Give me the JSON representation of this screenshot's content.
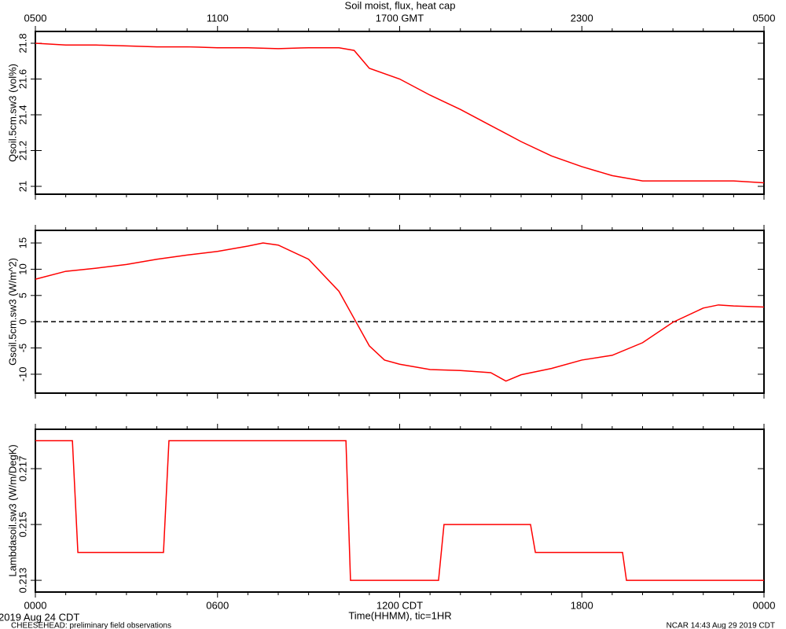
{
  "chart_data": [
    {
      "type": "line",
      "title": "Soil moist, flux, heat cap",
      "ylabel": "Qsoil.5cm.sw3 (vol%)",
      "xlim": [
        0,
        24
      ],
      "ylim": [
        20.956,
        21.866
      ],
      "yticks": [
        21.0,
        21.2,
        21.4,
        21.6,
        21.8
      ],
      "x2ticks": [
        {
          "value": 0,
          "label": "0500"
        },
        {
          "value": 6,
          "label": "1100"
        },
        {
          "value": 12,
          "label": "1700 GMT"
        },
        {
          "value": 18,
          "label": "2300"
        },
        {
          "value": 24,
          "label": "0500"
        }
      ],
      "xminorticks": [
        1,
        2,
        3,
        4,
        5,
        7,
        8,
        9,
        10,
        11,
        13,
        14,
        15,
        16,
        17,
        19,
        20,
        21,
        22,
        23
      ],
      "x": [
        0,
        1,
        2,
        3,
        4,
        5,
        6,
        7,
        8,
        9,
        10,
        10.5,
        11,
        12,
        13,
        14,
        15,
        16,
        17,
        18,
        19,
        20,
        21,
        22,
        23,
        24
      ],
      "series": [
        {
          "color": "#ff0000",
          "values": [
            21.8,
            21.79,
            21.79,
            21.785,
            21.78,
            21.78,
            21.775,
            21.775,
            21.77,
            21.775,
            21.775,
            21.76,
            21.66,
            21.6,
            21.51,
            21.43,
            21.34,
            21.25,
            21.17,
            21.11,
            21.06,
            21.03,
            21.03,
            21.03,
            21.03,
            21.02
          ]
        }
      ]
    },
    {
      "type": "line",
      "ylabel": "Gsoil.5cm.sw3 (W/m^2)",
      "xlim": [
        0,
        24
      ],
      "ylim": [
        -13.6,
        17.4
      ],
      "yticks": [
        -10,
        -5,
        0,
        5,
        10,
        15
      ],
      "reference_line": 0,
      "x": [
        0,
        1,
        2,
        3,
        4,
        5,
        6,
        7,
        7.5,
        8,
        9,
        10,
        10.5,
        11,
        11.5,
        12,
        13,
        14,
        15,
        15.5,
        16,
        17,
        18,
        19,
        20,
        21,
        22,
        22.5,
        23,
        24
      ],
      "series": [
        {
          "color": "#ff0000",
          "values": [
            8.1,
            9.6,
            10.2,
            10.9,
            11.9,
            12.7,
            13.4,
            14.4,
            15,
            14.6,
            11.9,
            5.8,
            0.6,
            -4.6,
            -7.3,
            -8.1,
            -9.1,
            -9.3,
            -9.7,
            -11.3,
            -10.1,
            -8.9,
            -7.3,
            -6.4,
            -4.0,
            -0.1,
            2.6,
            3.2,
            3.0,
            2.8
          ]
        }
      ]
    },
    {
      "type": "line",
      "ylabel": "Lambdasoil.sw3 (W/m/DegK)",
      "xlabel": "Time(HHMM), tic=1HR",
      "xlim": [
        0,
        24
      ],
      "ylim": [
        0.21258,
        0.21841
      ],
      "yticks": [
        0.213,
        0.215,
        0.217
      ],
      "xticks": [
        {
          "value": 0,
          "label": "0000"
        },
        {
          "value": 6,
          "label": "0600"
        },
        {
          "value": 12,
          "label": "1200 CDT"
        },
        {
          "value": 18,
          "label": "1800"
        },
        {
          "value": 24,
          "label": "0000"
        }
      ],
      "x": [
        0,
        1.22,
        1.4,
        4.22,
        4.4,
        10.23,
        10.38,
        13.28,
        13.46,
        16.31,
        16.47,
        19.34,
        19.47,
        24
      ],
      "series": [
        {
          "color": "#ff0000",
          "values": [
            0.218,
            0.218,
            0.214,
            0.214,
            0.218,
            0.218,
            0.213,
            0.213,
            0.215,
            0.215,
            0.214,
            0.214,
            0.213,
            0.213
          ]
        }
      ]
    }
  ],
  "footer": {
    "date": "2019 Aug 24 CDT",
    "project": "CHEESEHEAD: preliminary field observations",
    "stamp": "NCAR 14:43 Aug 29 2019 CDT"
  }
}
